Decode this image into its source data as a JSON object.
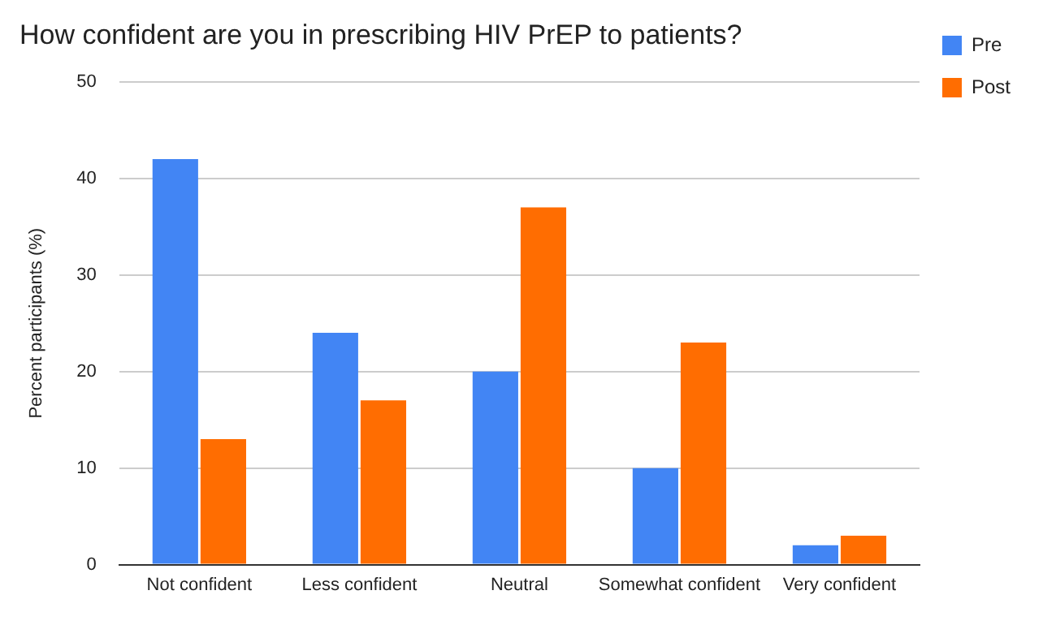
{
  "chart_data": {
    "type": "bar",
    "title": "How confident are you in prescribing HIV PrEP to patients?",
    "ylabel": "Percent participants (%)",
    "categories": [
      "Not confident",
      "Less confident",
      "Neutral",
      "Somewhat confident",
      "Very confident"
    ],
    "series": [
      {
        "name": "Pre",
        "color": "#4285f4",
        "values": [
          42,
          24,
          20,
          10,
          2
        ]
      },
      {
        "name": "Post",
        "color": "#ff6d01",
        "values": [
          13,
          17,
          37,
          23,
          3
        ]
      }
    ],
    "ylim": [
      0,
      50
    ],
    "yticks": [
      0,
      10,
      20,
      30,
      40,
      50
    ],
    "grid": "y",
    "legend": "top right"
  }
}
